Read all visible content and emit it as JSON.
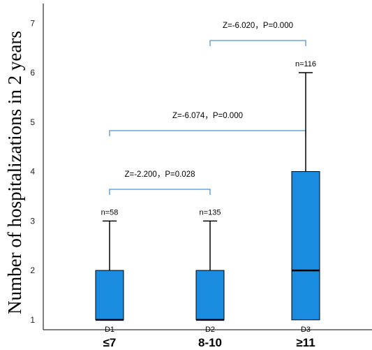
{
  "chart_data": {
    "type": "boxplot",
    "ylabel": "Number of hospitalizations in 2 years",
    "ylim": [
      0.8,
      7.4
    ],
    "yticks": [
      1,
      2,
      3,
      4,
      5,
      6,
      7
    ],
    "categories": [
      "≤7",
      "8-10",
      "≥11"
    ],
    "group_labels": [
      "D1",
      "D2",
      "D3"
    ],
    "box_color": "#1a8ce0",
    "bracket_color": "#4f93d6",
    "boxes": [
      {
        "category": "≤7",
        "label": "D1",
        "n_label": "n=58",
        "min": 1,
        "q1": 1,
        "median": 1,
        "q3": 2,
        "max": 3
      },
      {
        "category": "8-10",
        "label": "D2",
        "n_label": "n=135",
        "min": 1,
        "q1": 1,
        "median": 1,
        "q3": 2,
        "max": 3
      },
      {
        "category": "≥11",
        "label": "D3",
        "n_label": "n=116",
        "min": 1,
        "q1": 1,
        "median": 2,
        "q3": 4,
        "max": 6
      }
    ],
    "comparisons": [
      {
        "from": 0,
        "to": 1,
        "text": "Z=-2.200，P=0.028"
      },
      {
        "from": 0,
        "to": 2,
        "text": "Z=-6.074，P=0.000"
      },
      {
        "from": 1,
        "to": 2,
        "text": "Z=-6.020，P=0.000"
      }
    ]
  }
}
